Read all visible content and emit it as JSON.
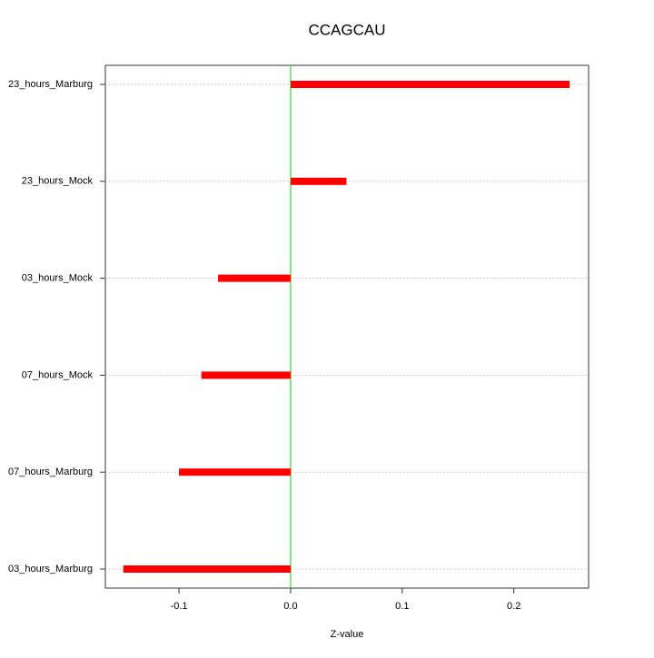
{
  "chart_data": {
    "type": "hbar",
    "title": "CCAGCAU",
    "x_label": "Z-value",
    "categories": [
      "23_hours_Marburg",
      "23_hours_Mock",
      "03_hours_Mock",
      "07_hours_Mock",
      "07_hours_Marburg",
      "03_hours_Marburg"
    ],
    "values": [
      0.25,
      0.05,
      -0.065,
      -0.08,
      -0.1,
      -0.15
    ],
    "color": "#ff0000",
    "xlim": [
      -0.166,
      0.267
    ],
    "xticks": [
      -0.1,
      {
        "value": 0,
        "label": "0.0"
      },
      0.1,
      0.2
    ],
    "reference_line": 0,
    "reference_color": "#00dd00",
    "grid": true
  }
}
